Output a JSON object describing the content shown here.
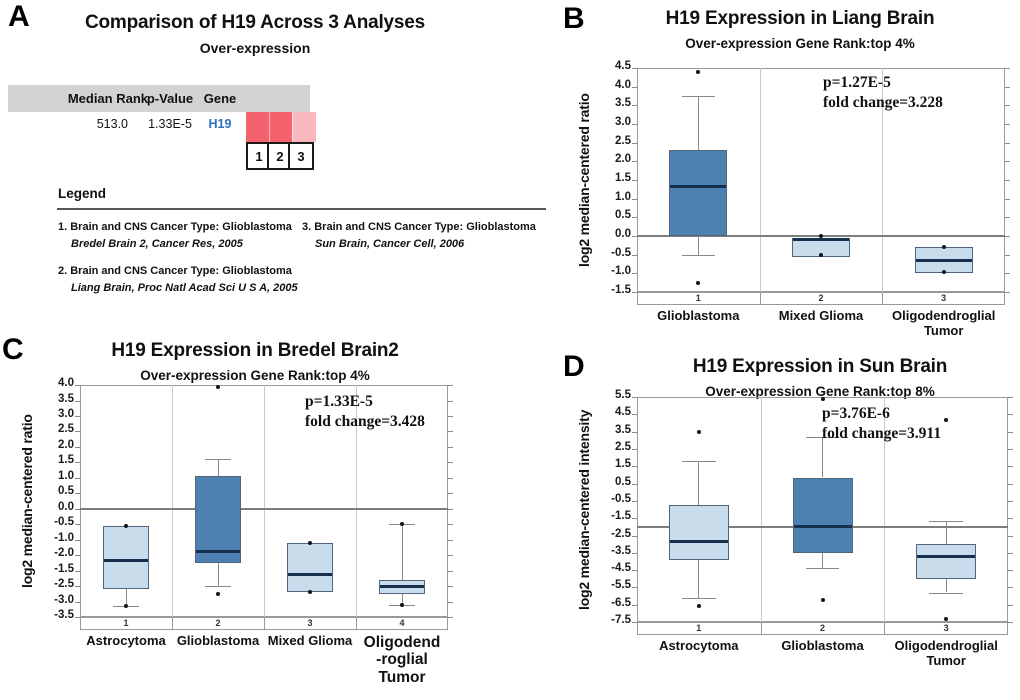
{
  "colors": {
    "dark_blue": "#4e80b2",
    "light_blue": "#c9dcec",
    "box_border": "#51657c",
    "median_line": "#17304e",
    "red_cell": "#f4636d",
    "pink_cell": "#f9b8bd",
    "link_blue": "#2e6fc0",
    "header_gray": "#d3d3d3"
  },
  "panels": {
    "a": {
      "letter": "A",
      "title": "Comparison of H19 Across 3 Analyses",
      "subtitle": "Over-expression",
      "table": {
        "headers": [
          "Median Rank",
          "p-Value",
          "Gene"
        ],
        "median_rank": "513.0",
        "p_value": "1.33E-5",
        "gene": "H19"
      },
      "heatmap_cells": [
        {
          "num": "1",
          "color": "#f4636d"
        },
        {
          "num": "2",
          "color": "#f4636d"
        },
        {
          "num": "3",
          "color": "#f9b8bd"
        }
      ],
      "legend": {
        "title": "Legend",
        "entries": [
          {
            "line1": "1. Brain and CNS Cancer Type: Glioblastoma",
            "line2": "Bredel Brain 2, Cancer Res, 2005"
          },
          {
            "line1": "2. Brain and CNS Cancer Type: Glioblastoma",
            "line2": "Liang Brain, Proc Natl Acad Sci U S A, 2005"
          },
          {
            "line1": "3. Brain and CNS Cancer Type: Glioblastoma",
            "line2": "Sun Brain, Cancer Cell, 2006"
          }
        ]
      }
    },
    "b": {
      "letter": "B"
    },
    "c": {
      "letter": "C"
    },
    "d": {
      "letter": "D"
    }
  },
  "chart_data": [
    {
      "id": "b",
      "type": "box",
      "title": "H19 Expression in Liang Brain",
      "subtitle": "Over-expression Gene Rank:top 4%",
      "annotation": {
        "p": "p=1.27E-5",
        "fold": "fold change=3.228"
      },
      "ylabel": "log2 median-centered ratio",
      "ylim": [
        -1.5,
        4.5
      ],
      "yticks": [
        "4.5",
        "4.0",
        "3.5",
        "3.0",
        "2.5",
        "2.0",
        "1.5",
        "1.0",
        "0.5",
        "0.0",
        "-0.5",
        "-1.0",
        "-1.5"
      ],
      "refline": 0.0,
      "categories": [
        {
          "num": "1",
          "lines": [
            "Glioblastoma"
          ]
        },
        {
          "num": "2",
          "lines": [
            "Mixed Glioma"
          ]
        },
        {
          "num": "3",
          "lines": [
            "Oligodendroglial",
            "Tumor"
          ]
        }
      ],
      "boxes": [
        {
          "fill": "dark",
          "whisker_high": 3.75,
          "q3": 2.3,
          "median": 1.35,
          "q1": 0.0,
          "whisker_low": -0.5,
          "outliers": [
            4.4,
            -1.25
          ]
        },
        {
          "fill": "light",
          "q3": -0.06,
          "median": -0.09,
          "q1": -0.57,
          "outliers": [
            0.0,
            -0.5
          ]
        },
        {
          "fill": "light",
          "q3": -0.3,
          "median": -0.65,
          "q1": -1.0,
          "outliers": [
            -0.28,
            -0.97
          ]
        }
      ]
    },
    {
      "id": "c",
      "type": "box",
      "title": "H19 Expression in Bredel Brain2",
      "subtitle": "Over-expression Gene Rank:top 4%",
      "annotation": {
        "p": "p=1.33E-5",
        "fold": "fold change=3.428"
      },
      "ylabel": "log2 median-centered ratio",
      "ylim": [
        -3.5,
        4.0
      ],
      "yticks": [
        "4.0",
        "3.5",
        "3.0",
        "2.5",
        "2.0",
        "1.5",
        "1.0",
        "0.5",
        "0.0",
        "-0.5",
        "-1.0",
        "-2.0",
        "-1.5",
        "-2.5",
        "-3.0",
        "-3.5"
      ],
      "refline": 0.0,
      "categories": [
        {
          "num": "1",
          "lines": [
            "Astrocytoma"
          ]
        },
        {
          "num": "2",
          "lines": [
            "Glioblastoma"
          ]
        },
        {
          "num": "3",
          "lines": [
            "Mixed Glioma"
          ]
        },
        {
          "num": "4",
          "lines": [
            "Oligodend",
            "-roglial",
            "Tumor"
          ],
          "big": true
        }
      ],
      "boxes": [
        {
          "fill": "light",
          "q3": -0.55,
          "median": -1.65,
          "q1": -2.6,
          "whisker_low": -3.15,
          "outliers": [
            -0.55,
            -3.15
          ]
        },
        {
          "fill": "dark",
          "whisker_high": 1.6,
          "q3": 1.05,
          "median": -1.35,
          "q1": -1.75,
          "whisker_low": -2.5,
          "outliers": [
            3.95,
            -2.75
          ]
        },
        {
          "fill": "light",
          "q3": -1.1,
          "median": -2.1,
          "q1": -2.7,
          "outliers": [
            -1.1,
            -2.7
          ]
        },
        {
          "fill": "light",
          "whisker_high": -0.5,
          "q3": -2.3,
          "median": -2.5,
          "q1": -2.75,
          "whisker_low": -3.1,
          "outliers": [
            -0.5,
            -3.1
          ]
        }
      ]
    },
    {
      "id": "d",
      "type": "box",
      "title": "H19 Expression in Sun Brain",
      "subtitle": "Over-expression Gene Rank:top 8%",
      "annotation": {
        "p": "p=3.76E-6",
        "fold": "fold change=3.911"
      },
      "ylabel": "log2 median-centered intensity",
      "ylim": [
        -7.5,
        5.5
      ],
      "yticks": [
        "5.5",
        "4.5",
        "3.5",
        "2.5",
        "1.5",
        "0.5",
        "-0.5",
        "-1.5",
        "-2.5",
        "-3.5",
        "-4.5",
        "-5.5",
        "-6.5",
        "-7.5"
      ],
      "refline": -2.0,
      "categories": [
        {
          "num": "1",
          "lines": [
            "Astrocytoma"
          ]
        },
        {
          "num": "2",
          "lines": [
            "Glioblastoma"
          ]
        },
        {
          "num": "3",
          "lines": [
            "Oligodendroglial",
            "Tumor"
          ]
        }
      ],
      "boxes": [
        {
          "fill": "light",
          "whisker_high": 1.8,
          "q3": -0.75,
          "median": -2.8,
          "q1": -3.9,
          "whisker_low": -6.1,
          "outliers": [
            3.5,
            -6.6
          ]
        },
        {
          "fill": "dark",
          "whisker_high": 3.2,
          "q3": 0.85,
          "median": -1.95,
          "q1": -3.5,
          "whisker_low": -4.4,
          "outliers": [
            5.4,
            -6.2
          ]
        },
        {
          "fill": "light",
          "whisker_high": -1.65,
          "q3": -3.0,
          "median": -3.7,
          "q1": -5.0,
          "whisker_low": -5.8,
          "outliers": [
            4.2,
            -7.3
          ]
        }
      ]
    }
  ]
}
